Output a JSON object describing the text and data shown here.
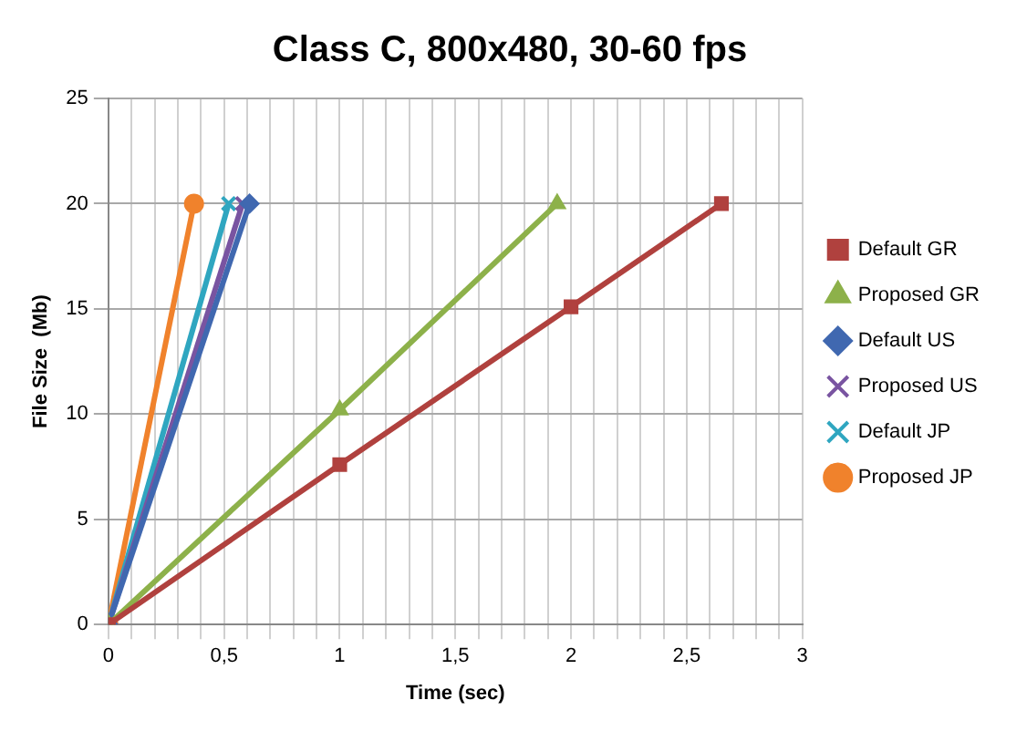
{
  "chart_data": {
    "type": "line",
    "title": "Class C, 800x480, 30-60 fps",
    "xlabel": "Time (sec)",
    "ylabel": "File Size  (Mb)",
    "series": [
      {
        "name": "Default GR",
        "color": "#b0413e",
        "marker": "square",
        "x": [
          0,
          1,
          2,
          2.65
        ],
        "values": [
          0,
          7.6,
          15.1,
          20
        ]
      },
      {
        "name": "Proposed GR",
        "color": "#8db14a",
        "marker": "triangle",
        "x": [
          0,
          1,
          1.94
        ],
        "values": [
          0,
          10.2,
          20
        ]
      },
      {
        "name": "Default US",
        "color": "#4068b0",
        "marker": "diamond",
        "x": [
          0,
          0.61
        ],
        "values": [
          0,
          20
        ]
      },
      {
        "name": "Proposed US",
        "color": "#7954a1",
        "marker": "cross",
        "x": [
          0,
          0.58
        ],
        "values": [
          0,
          20
        ]
      },
      {
        "name": "Default JP",
        "color": "#2fa6c0",
        "marker": "cross",
        "x": [
          0,
          0.52
        ],
        "values": [
          0,
          20
        ]
      },
      {
        "name": "Proposed JP",
        "color": "#f0822c",
        "marker": "circle",
        "x": [
          0,
          0.37
        ],
        "values": [
          0,
          20
        ]
      }
    ],
    "xlim": [
      0,
      3
    ],
    "xticks": [
      0,
      {
        "value": 0.1,
        "label": null
      },
      {
        "value": 0.2,
        "label": null
      },
      {
        "value": 0.3,
        "label": null
      },
      {
        "value": 0.4,
        "label": null
      },
      {
        "value": 0.5,
        "label": "0,5"
      },
      {
        "value": 0.6,
        "label": null
      },
      {
        "value": 0.7,
        "label": null
      },
      {
        "value": 0.8,
        "label": null
      },
      {
        "value": 0.9,
        "label": null
      },
      1,
      {
        "value": 1.1,
        "label": null
      },
      {
        "value": 1.2,
        "label": null
      },
      {
        "value": 1.3,
        "label": null
      },
      {
        "value": 1.4,
        "label": null
      },
      {
        "value": 1.5,
        "label": "1,5"
      },
      {
        "value": 1.6,
        "label": null
      },
      {
        "value": 1.7,
        "label": null
      },
      {
        "value": 1.8,
        "label": null
      },
      {
        "value": 1.9,
        "label": null
      },
      2,
      {
        "value": 2.1,
        "label": null
      },
      {
        "value": 2.2,
        "label": null
      },
      {
        "value": 2.3,
        "label": null
      },
      {
        "value": 2.4,
        "label": null
      },
      {
        "value": 2.5,
        "label": "2,5"
      },
      {
        "value": 2.6,
        "label": null
      },
      {
        "value": 2.7,
        "label": null
      },
      {
        "value": 2.8,
        "label": null
      },
      {
        "value": 2.9,
        "label": null
      },
      3
    ],
    "ylim": [
      0,
      25
    ],
    "yticks": [
      0,
      5,
      10,
      15,
      20,
      25
    ],
    "grid": true,
    "legend": "right"
  }
}
